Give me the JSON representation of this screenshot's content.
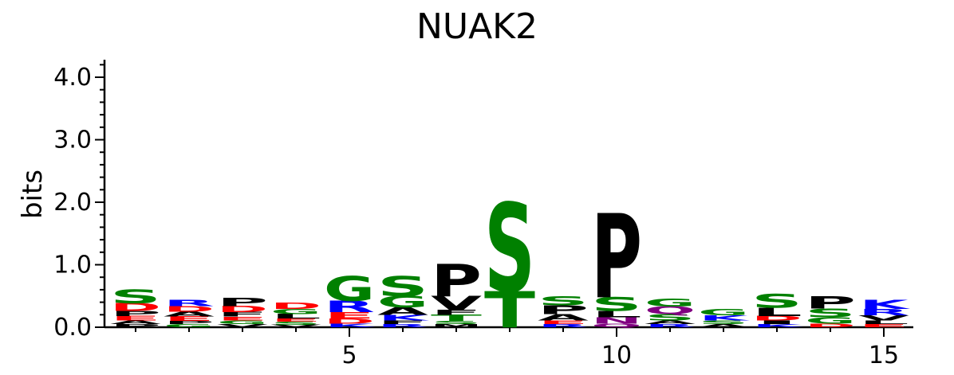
{
  "chart_data": {
    "type": "sequence-logo",
    "title": "NUAK2",
    "ylabel": "bits",
    "xlabel": "",
    "ylim": [
      0,
      4.3
    ],
    "y_ticks": [
      "0.0",
      "1.0",
      "2.0",
      "3.0",
      "4.0"
    ],
    "x_ticks": [
      "5",
      "10",
      "15"
    ],
    "x_tick_positions": [
      5,
      10,
      15
    ],
    "colors": {
      "S": "#008000",
      "T": "#008000",
      "G": "#008000",
      "P": "#000000",
      "V": "#000000",
      "L": "#000000",
      "A": "#000000",
      "F": "#000000",
      "M": "#000000",
      "I": "#000000",
      "W": "#000000",
      "R": "#0000ff",
      "K": "#0000ff",
      "H": "#0000ff",
      "D": "#ff0000",
      "E": "#ff0000",
      "Q": "#800080",
      "N": "#800080",
      "Y": "#800080",
      "C": "#008000"
    },
    "positions": [
      {
        "pos": 1,
        "letters": [
          [
            "P",
            0.05
          ],
          [
            "A",
            0.06
          ],
          [
            "E",
            0.07
          ],
          [
            "P",
            0.08
          ],
          [
            "D",
            0.12
          ],
          [
            "S",
            0.22
          ]
        ]
      },
      {
        "pos": 2,
        "letters": [
          [
            "G",
            0.05
          ],
          [
            "P",
            0.05
          ],
          [
            "E",
            0.07
          ],
          [
            "A",
            0.08
          ],
          [
            "D",
            0.09
          ],
          [
            "R",
            0.1
          ]
        ]
      },
      {
        "pos": 3,
        "letters": [
          [
            "V",
            0.05
          ],
          [
            "G",
            0.06
          ],
          [
            "E",
            0.06
          ],
          [
            "F",
            0.07
          ],
          [
            "D",
            0.1
          ],
          [
            "P",
            0.13
          ]
        ]
      },
      {
        "pos": 4,
        "letters": [
          [
            "V",
            0.04
          ],
          [
            "S",
            0.05
          ],
          [
            "E",
            0.05
          ],
          [
            "L",
            0.07
          ],
          [
            "G",
            0.08
          ],
          [
            "D",
            0.1
          ]
        ]
      },
      {
        "pos": 5,
        "letters": [
          [
            "K",
            0.06
          ],
          [
            "D",
            0.08
          ],
          [
            "E",
            0.1
          ],
          [
            "R",
            0.18
          ],
          [
            "G",
            0.4
          ]
        ]
      },
      {
        "pos": 6,
        "letters": [
          [
            "R",
            0.05
          ],
          [
            "F",
            0.06
          ],
          [
            "K",
            0.09
          ],
          [
            "A",
            0.12
          ],
          [
            "G",
            0.18
          ],
          [
            "S",
            0.32
          ]
        ]
      },
      {
        "pos": 7,
        "letters": [
          [
            "M",
            0.05
          ],
          [
            "S",
            0.05
          ],
          [
            "T",
            0.1
          ],
          [
            "F",
            0.08
          ],
          [
            "V",
            0.22
          ],
          [
            "P",
            0.52
          ]
        ]
      },
      {
        "pos": 8,
        "letters": [
          [
            "T",
            0.58
          ],
          [
            "S",
            1.42
          ]
        ]
      },
      {
        "pos": 9,
        "letters": [
          [
            "R",
            0.05
          ],
          [
            "E",
            0.06
          ],
          [
            "A",
            0.1
          ],
          [
            "P",
            0.14
          ],
          [
            "S",
            0.15
          ]
        ]
      },
      {
        "pos": 10,
        "letters": [
          [
            "Q",
            0.06
          ],
          [
            "N",
            0.1
          ],
          [
            "L",
            0.1
          ],
          [
            "S",
            0.22
          ],
          [
            "P",
            1.35
          ]
        ]
      },
      {
        "pos": 11,
        "letters": [
          [
            "R",
            0.05
          ],
          [
            "A",
            0.06
          ],
          [
            "S",
            0.1
          ],
          [
            "Q",
            0.12
          ],
          [
            "G",
            0.12
          ]
        ]
      },
      {
        "pos": 12,
        "letters": [
          [
            "A",
            0.05
          ],
          [
            "S",
            0.06
          ],
          [
            "K",
            0.08
          ],
          [
            "G",
            0.1
          ]
        ]
      },
      {
        "pos": 13,
        "letters": [
          [
            "K",
            0.05
          ],
          [
            "I",
            0.06
          ],
          [
            "D",
            0.07
          ],
          [
            "L",
            0.13
          ],
          [
            "S",
            0.22
          ]
        ]
      },
      {
        "pos": 14,
        "letters": [
          [
            "D",
            0.06
          ],
          [
            "G",
            0.1
          ],
          [
            "S",
            0.14
          ],
          [
            "P",
            0.2
          ]
        ]
      },
      {
        "pos": 15,
        "letters": [
          [
            "E",
            0.05
          ],
          [
            "L",
            0.06
          ],
          [
            "V",
            0.08
          ],
          [
            "R",
            0.1
          ],
          [
            "K",
            0.15
          ]
        ]
      }
    ]
  }
}
